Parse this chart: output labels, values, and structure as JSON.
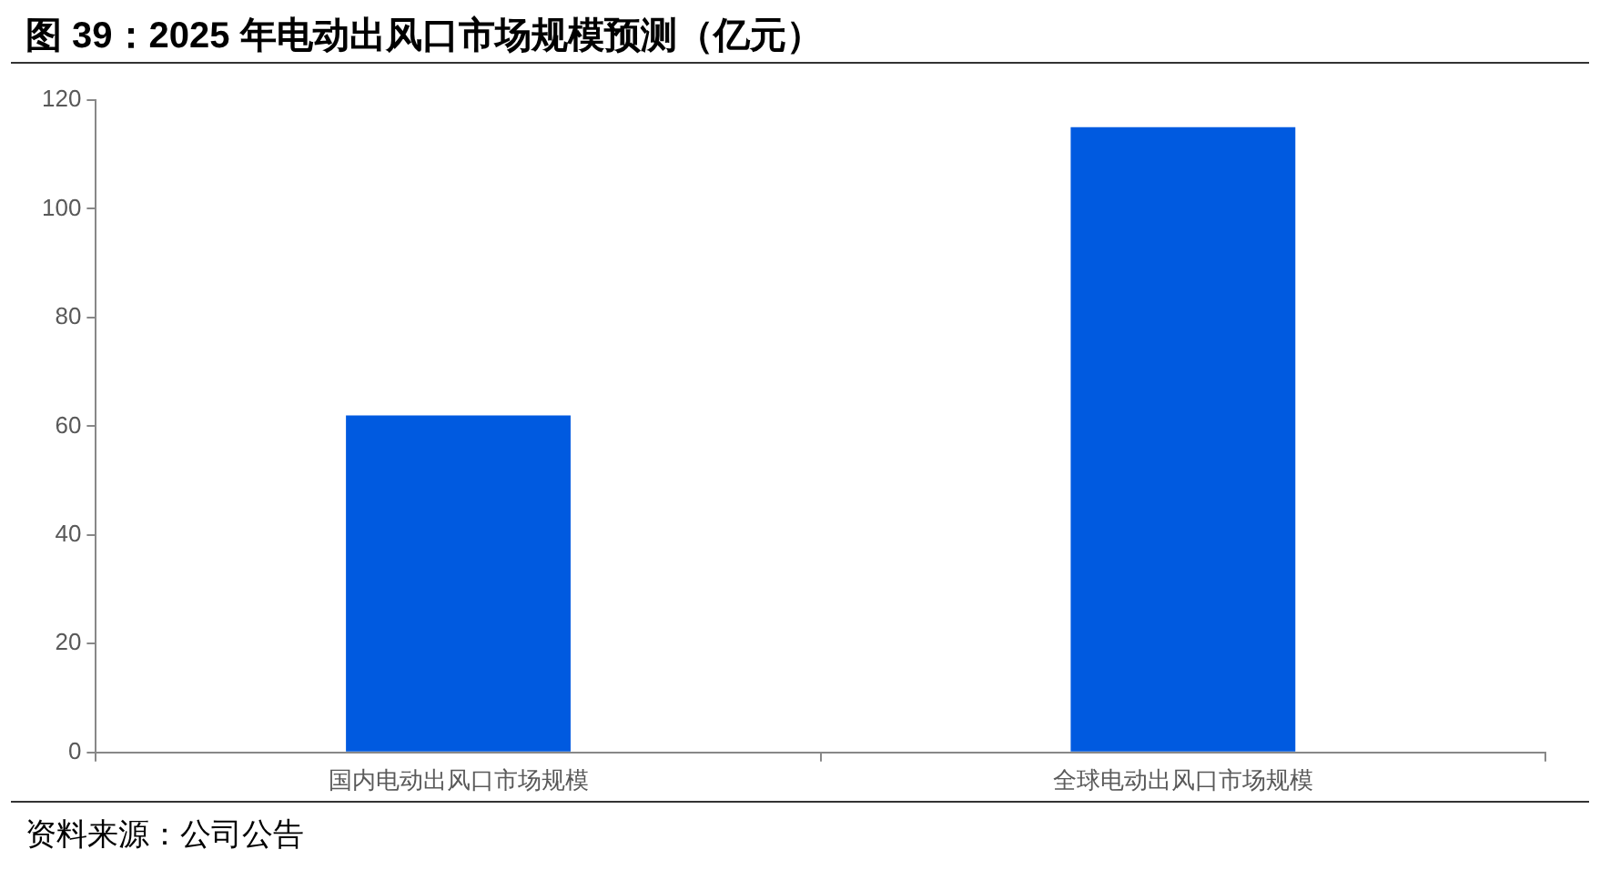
{
  "chart_data": {
    "type": "bar",
    "title": "图 39：2025 年电动出风口市场规模预测（亿元）",
    "categories": [
      "国内电动出风口市场规模",
      "全球电动出风口市场规模"
    ],
    "values": [
      62,
      115
    ],
    "color": "#005ae0",
    "ylim": [
      0,
      120
    ],
    "yticks": [
      0,
      20,
      40,
      60,
      80,
      100,
      120
    ],
    "grid": false,
    "legend": false,
    "annotations": [
      "资料来源：公司公告"
    ]
  }
}
